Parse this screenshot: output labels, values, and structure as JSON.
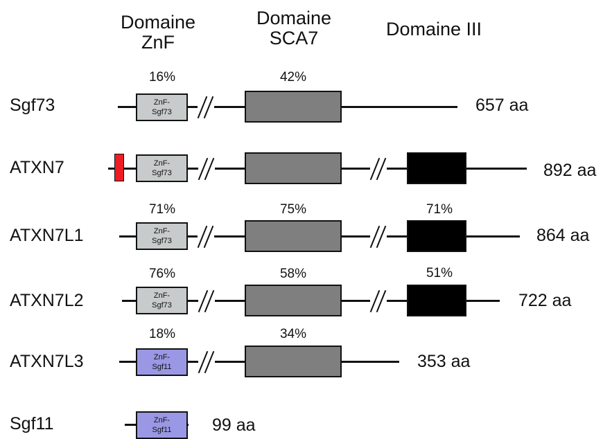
{
  "headers": {
    "znf": [
      "Domaine",
      "ZnF"
    ],
    "sca7": [
      "Domaine",
      "SCA7"
    ],
    "d3": "Domaine III"
  },
  "znf_box": [
    "ZnF-",
    "Sgf73"
  ],
  "znf_box_sgf11": [
    "ZnF-",
    "Sgf11"
  ],
  "proteins": [
    {
      "name": "Sgf73",
      "length": "657 aa",
      "pct_znf": "16%",
      "pct_sca7": "42%",
      "pct_d3": ""
    },
    {
      "name": "ATXN7",
      "length": "892 aa",
      "pct_znf": "",
      "pct_sca7": "",
      "pct_d3": ""
    },
    {
      "name": "ATXN7L1",
      "length": "864 aa",
      "pct_znf": "71%",
      "pct_sca7": "75%",
      "pct_d3": "71%"
    },
    {
      "name": "ATXN7L2",
      "length": "722 aa",
      "pct_znf": "76%",
      "pct_sca7": "58%",
      "pct_d3": "51%"
    },
    {
      "name": "ATXN7L3",
      "length": "353 aa",
      "pct_znf": "18%",
      "pct_sca7": "34%",
      "pct_d3": ""
    },
    {
      "name": "Sgf11",
      "length": "99 aa",
      "pct_znf": "",
      "pct_sca7": "",
      "pct_d3": ""
    }
  ],
  "colors": {
    "znf_grey": "#c8cbcb",
    "znf_purple": "#9a98e4",
    "sca7": "#7f7f7f",
    "domain3": "#000000",
    "n_term_red": "#ee1c23"
  }
}
